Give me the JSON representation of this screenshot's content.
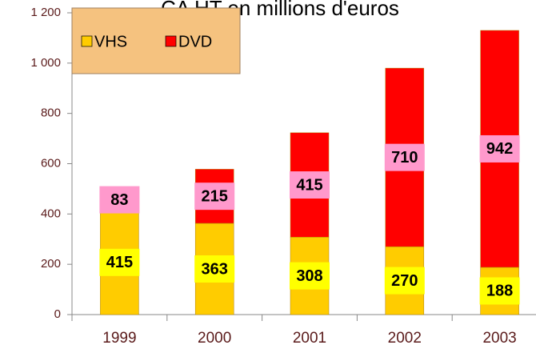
{
  "chart_data": {
    "type": "stacked_bar",
    "title": "CA HT en millions d'euros",
    "categories": [
      "1999",
      "2000",
      "2001",
      "2002",
      "2003"
    ],
    "series": [
      {
        "name": "VHS",
        "color": "#FFCC00",
        "label_color": "#FFFF00",
        "values": [
          415,
          363,
          308,
          270,
          188
        ]
      },
      {
        "name": "DVD",
        "color": "#FF0000",
        "label_color": "#FF99CC",
        "values": [
          83,
          215,
          415,
          710,
          942
        ]
      }
    ],
    "ylim": [
      0,
      1200
    ],
    "yticks": [
      0,
      200,
      400,
      600,
      800,
      {
        "value": 1000,
        "label": "1 000"
      },
      {
        "value": 1200,
        "label": "1 200"
      }
    ],
    "legend": "top-left"
  }
}
